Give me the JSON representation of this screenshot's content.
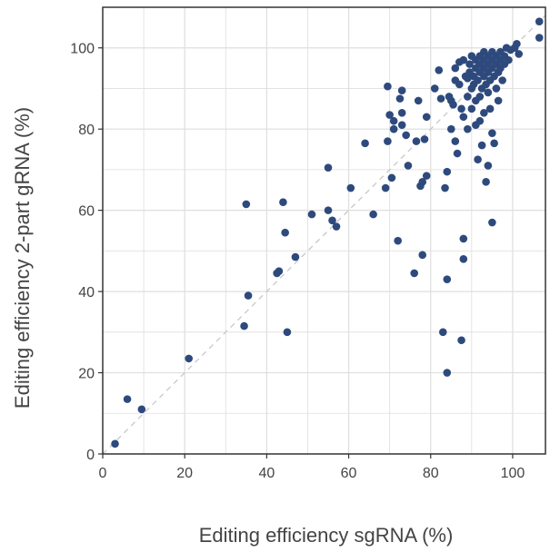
{
  "chart_data": {
    "type": "scatter",
    "title": "",
    "xlabel": "Editing efficiency sgRNA (%)",
    "ylabel": "Editing efficiency 2-part gRNA (%)",
    "xlim": [
      0,
      108
    ],
    "ylim": [
      0,
      110
    ],
    "xticks": [
      "0",
      "20",
      "40",
      "60",
      "80",
      "100"
    ],
    "yticks": [
      "0",
      "20",
      "40",
      "60",
      "80",
      "100"
    ],
    "grid": true,
    "reference_line": {
      "type": "identity",
      "style": "dashed",
      "color": "#c8c8c8"
    },
    "colors": {
      "marker": "#2e4a7d",
      "grid": "#dedede",
      "frame": "#333333",
      "text": "#444444"
    },
    "series": [
      {
        "points": [
          [
            3,
            2.5
          ],
          [
            6,
            13.5
          ],
          [
            9.5,
            11
          ],
          [
            21,
            23.5
          ],
          [
            34.5,
            31.5
          ],
          [
            35.5,
            39
          ],
          [
            35,
            61.5
          ],
          [
            42.5,
            44.5
          ],
          [
            43,
            45
          ],
          [
            44,
            62
          ],
          [
            44.5,
            54.5
          ],
          [
            45,
            30
          ],
          [
            47,
            48.5
          ],
          [
            51,
            59
          ],
          [
            55,
            70.5
          ],
          [
            55,
            60
          ],
          [
            56,
            57.5
          ],
          [
            57,
            56
          ],
          [
            60.5,
            65.5
          ],
          [
            64,
            76.5
          ],
          [
            66,
            59
          ],
          [
            69.5,
            77
          ],
          [
            69.5,
            90.5
          ],
          [
            69,
            65.5
          ],
          [
            70.5,
            68
          ],
          [
            70,
            83.5
          ],
          [
            71,
            82
          ],
          [
            71,
            80
          ],
          [
            72,
            52.5
          ],
          [
            72.5,
            87.5
          ],
          [
            73,
            89.5
          ],
          [
            73,
            84
          ],
          [
            73,
            81
          ],
          [
            74,
            78.5
          ],
          [
            74.5,
            71
          ],
          [
            76,
            44.5
          ],
          [
            76.5,
            77
          ],
          [
            77,
            87
          ],
          [
            77.5,
            66
          ],
          [
            78,
            67
          ],
          [
            78,
            49
          ],
          [
            78.5,
            77.5
          ],
          [
            79,
            83
          ],
          [
            79,
            68.5
          ],
          [
            81,
            90
          ],
          [
            82,
            94.5
          ],
          [
            82.5,
            87.5
          ],
          [
            83,
            30
          ],
          [
            83.5,
            65.5
          ],
          [
            84,
            20
          ],
          [
            84,
            43
          ],
          [
            84,
            69.5
          ],
          [
            84.5,
            88
          ],
          [
            85,
            80
          ],
          [
            85,
            87
          ],
          [
            85.5,
            86
          ],
          [
            86,
            92
          ],
          [
            86,
            95
          ],
          [
            86,
            77
          ],
          [
            86.5,
            74
          ],
          [
            87,
            91
          ],
          [
            87,
            96.5
          ],
          [
            87.5,
            85
          ],
          [
            87.5,
            28
          ],
          [
            88,
            48
          ],
          [
            88,
            53
          ],
          [
            88,
            83
          ],
          [
            88,
            97
          ],
          [
            88.5,
            93
          ],
          [
            89,
            92.5
          ],
          [
            89,
            88
          ],
          [
            89,
            80
          ],
          [
            89.5,
            94
          ],
          [
            89.5,
            96
          ],
          [
            90,
            90
          ],
          [
            90,
            85
          ],
          [
            90,
            98
          ],
          [
            90.5,
            91
          ],
          [
            90.5,
            93
          ],
          [
            91,
            95
          ],
          [
            91,
            97
          ],
          [
            91,
            87
          ],
          [
            91,
            81
          ],
          [
            91.5,
            72.5
          ],
          [
            91.5,
            92
          ],
          [
            92,
            94
          ],
          [
            92,
            96
          ],
          [
            92,
            98
          ],
          [
            92,
            88
          ],
          [
            92,
            82
          ],
          [
            92.5,
            90
          ],
          [
            92.5,
            76
          ],
          [
            93,
            93
          ],
          [
            93,
            95
          ],
          [
            93,
            97
          ],
          [
            93,
            99
          ],
          [
            93,
            84
          ],
          [
            93.5,
            67
          ],
          [
            93.5,
            91
          ],
          [
            94,
            94
          ],
          [
            94,
            96
          ],
          [
            94,
            98
          ],
          [
            94,
            89
          ],
          [
            94,
            71
          ],
          [
            94.5,
            92
          ],
          [
            94.5,
            85
          ],
          [
            95,
            95
          ],
          [
            95,
            97
          ],
          [
            95,
            99
          ],
          [
            95,
            57
          ],
          [
            95,
            79
          ],
          [
            95.5,
            76.5
          ],
          [
            95.5,
            93
          ],
          [
            96,
            96
          ],
          [
            96,
            98
          ],
          [
            96,
            90
          ],
          [
            96.5,
            94
          ],
          [
            96.5,
            87
          ],
          [
            97,
            97
          ],
          [
            97,
            99
          ],
          [
            97,
            95
          ],
          [
            97.5,
            92
          ],
          [
            98,
            96
          ],
          [
            98,
            98
          ],
          [
            98.5,
            100
          ],
          [
            99,
            97
          ],
          [
            99.5,
            99.5
          ],
          [
            100.5,
            100
          ],
          [
            101,
            101
          ],
          [
            101.5,
            98.5
          ],
          [
            106.5,
            102.5
          ],
          [
            106.5,
            106.5
          ]
        ]
      }
    ]
  }
}
